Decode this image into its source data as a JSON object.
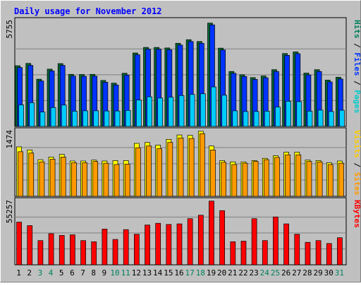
{
  "chart_data": {
    "type": "bar",
    "title": "Daily usage for November 2012",
    "categories": [
      "1",
      "2",
      "3",
      "4",
      "5",
      "6",
      "7",
      "8",
      "9",
      "10",
      "11",
      "12",
      "13",
      "14",
      "15",
      "16",
      "17",
      "18",
      "19",
      "20",
      "21",
      "22",
      "23",
      "24",
      "25",
      "26",
      "27",
      "28",
      "29",
      "30",
      "31"
    ],
    "weekend_days": [
      "3",
      "4",
      "10",
      "11",
      "17",
      "18",
      "24",
      "25",
      "31"
    ],
    "panels": [
      {
        "id": "hits-files-pages",
        "scale_label": "5755",
        "ymax": 5755,
        "series_labels": [
          "Pages",
          "Files",
          "Hits"
        ],
        "series": [
          {
            "name": "Hits",
            "color": "#006633",
            "values": [
              3380,
              3510,
              2630,
              3190,
              3500,
              2900,
              2890,
              2900,
              2560,
              2410,
              2960,
              4090,
              4400,
              4400,
              4370,
              4630,
              4830,
              4730,
              5755,
              4360,
              3060,
              2880,
              2720,
              2810,
              3160,
              4060,
              4150,
              2970,
              3160,
              2580,
              2740
            ]
          },
          {
            "name": "Files",
            "color": "#0033ff",
            "values": [
              3280,
              3400,
              2530,
              3090,
              3400,
              2800,
              2790,
              2800,
              2460,
              2310,
              2860,
              3990,
              4300,
              4300,
              4270,
              4530,
              4730,
              4630,
              5655,
              4260,
              2960,
              2780,
              2620,
              2710,
              3060,
              3960,
              4050,
              2870,
              3060,
              2480,
              2640
            ]
          },
          {
            "name": "Pages",
            "color": "#00ccff",
            "values": [
              1200,
              1320,
              800,
              1050,
              1190,
              850,
              870,
              870,
              860,
              860,
              890,
              1470,
              1650,
              1580,
              1630,
              1720,
              1780,
              1820,
              2200,
              1740,
              870,
              830,
              830,
              850,
              1080,
              1400,
              1380,
              850,
              910,
              830,
              900
            ]
          }
        ]
      },
      {
        "id": "visits-sites",
        "scale_label": "1474",
        "ymax": 1474,
        "series_labels": [
          "Sites",
          "Visits"
        ],
        "series": [
          {
            "name": "Visits",
            "color": "#ffff00",
            "values": [
              1120,
              1050,
              830,
              890,
              950,
              800,
              800,
              820,
              800,
              810,
              810,
              1200,
              1220,
              1160,
              1290,
              1390,
              1380,
              1474,
              1140,
              810,
              780,
              780,
              810,
              860,
              920,
              1000,
              1000,
              820,
              810,
              760,
              800
            ]
          },
          {
            "name": "Sites",
            "color": "#ff9900",
            "values": [
              1010,
              980,
              780,
              840,
              890,
              760,
              760,
              790,
              750,
              720,
              730,
              1100,
              1140,
              1080,
              1220,
              1320,
              1310,
              1420,
              1050,
              770,
              720,
              750,
              790,
              830,
              880,
              940,
              940,
              790,
              780,
              720,
              750
            ]
          }
        ]
      },
      {
        "id": "kbytes",
        "scale_label": "55257",
        "ymax": 55257,
        "series_labels": [
          "KBytes"
        ],
        "series": [
          {
            "name": "KBytes",
            "color": "#ff0000",
            "values": [
              37000,
              34000,
              21000,
              27000,
              25500,
              26000,
              21000,
              20000,
              31000,
              22000,
              30500,
              26500,
              34500,
              36000,
              35000,
              35500,
              40000,
              43000,
              55257,
              47000,
              20000,
              20500,
              40000,
              21000,
              41500,
              35500,
              26500,
              19500,
              21000,
              18500,
              23500
            ]
          }
        ]
      }
    ],
    "colors": {
      "background": "#c0c0c0",
      "title": "#0000ff",
      "weekday_label": "#000000",
      "weekend_label": "#00805c",
      "pages_label": "#00cccc",
      "files_label": "#0033ff",
      "hits_label": "#00805c",
      "sites_label": "#ff9900",
      "visits_label": "#ffcc00",
      "kbytes_label": "#ff0000"
    }
  }
}
